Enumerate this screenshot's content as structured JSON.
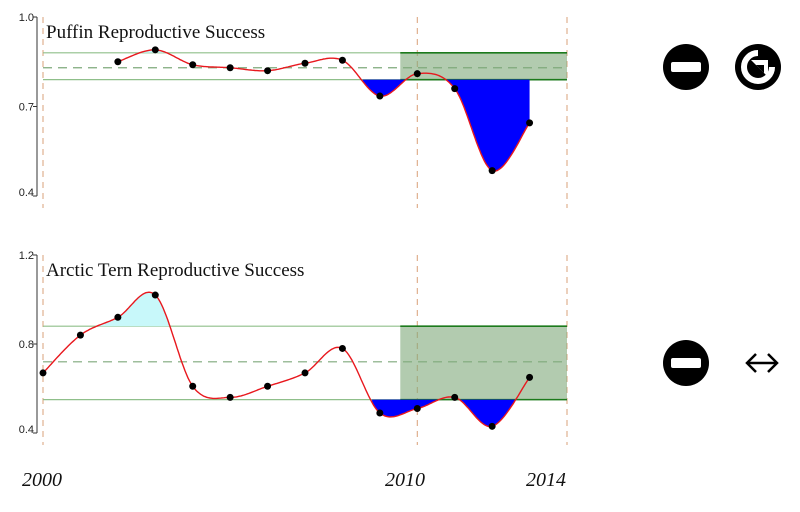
{
  "chart_data": [
    {
      "type": "line",
      "title": "Puffin Reproductive Success",
      "xlabel": "",
      "ylabel": "",
      "xlim": [
        2000,
        2014
      ],
      "ylim": [
        0.4,
        1.0
      ],
      "yticks": [
        "0.4",
        "0.7",
        "1.0"
      ],
      "x": [
        2002,
        2003,
        2004,
        2005,
        2006,
        2007,
        2008,
        2009,
        2010,
        2011,
        2012,
        2013
      ],
      "series": [
        {
          "values": [
            0.85,
            0.89,
            0.84,
            0.83,
            0.82,
            0.845,
            0.855,
            0.735,
            0.81,
            0.76,
            0.485,
            0.645
          ]
        }
      ],
      "reference": {
        "mean": 0.83,
        "upper": 0.88,
        "lower": 0.79,
        "period": [
          2010,
          2014
        ]
      },
      "colors": {
        "line": "#e8181e",
        "below": "#0000ff",
        "above": "#c8f8fa",
        "band": "#7ea87a",
        "bandLine": "#1c7a1c",
        "vline": "#d9a078"
      }
    },
    {
      "type": "line",
      "title": "Arctic Tern Reproductive Success",
      "xlabel": "",
      "ylabel": "",
      "xlim": [
        2000,
        2014
      ],
      "ylim": [
        0.4,
        1.2
      ],
      "yticks": [
        "0.4",
        "0.8",
        "1.2"
      ],
      "x": [
        2000,
        2001,
        2002,
        2003,
        2004,
        2005,
        2006,
        2007,
        2008,
        2009,
        2010,
        2011,
        2012,
        2013
      ],
      "series": [
        {
          "values": [
            0.67,
            0.84,
            0.92,
            1.02,
            0.61,
            0.56,
            0.61,
            0.67,
            0.78,
            0.49,
            0.51,
            0.56,
            0.43,
            0.65
          ]
        }
      ],
      "reference": {
        "mean": 0.72,
        "upper": 0.88,
        "lower": 0.55,
        "period": [
          2010,
          2014
        ]
      },
      "colors": {
        "line": "#e8181e",
        "below": "#0000ff",
        "above": "#c8f8fa",
        "band": "#7ea87a",
        "bandLine": "#1c7a1c",
        "vline": "#d9a078"
      }
    }
  ],
  "x_axis_years": [
    "2000",
    "2010",
    "2014"
  ],
  "status": {
    "puffin": {
      "icons": [
        "no-entry-icon",
        "arrow-down-right-circle-icon"
      ]
    },
    "arctic_tern": {
      "icons": [
        "no-entry-icon",
        "left-right-arrow-icon"
      ],
      "arrow_glyph": "↭"
    }
  }
}
